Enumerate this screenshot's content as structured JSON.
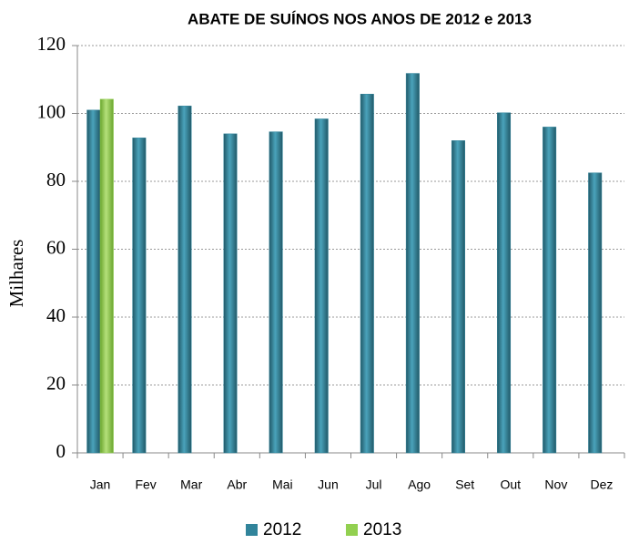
{
  "chart_data": {
    "type": "bar",
    "title": "ABATE DE SUÍNOS NOS ANOS DE 2012 e 2013",
    "y_label": "Milhares",
    "categories": [
      "Jan",
      "Fev",
      "Mar",
      "Abr",
      "Mai",
      "Jun",
      "Jul",
      "Ago",
      "Set",
      "Out",
      "Nov",
      "Dez"
    ],
    "series": [
      {
        "name": "2012",
        "color": "#31849b",
        "values": [
          101,
          92.8,
          102.2,
          94,
          94.6,
          98.4,
          105.7,
          111.8,
          92,
          100.2,
          96,
          82.5
        ]
      },
      {
        "name": "2013",
        "color": "#92d050",
        "values": [
          104.2,
          null,
          null,
          null,
          null,
          null,
          null,
          null,
          null,
          null,
          null,
          null
        ]
      }
    ],
    "ylim": [
      0,
      120
    ],
    "yticks": [
      0,
      20,
      40,
      60,
      80,
      100,
      120
    ],
    "grid": true,
    "legend": "bottom"
  }
}
